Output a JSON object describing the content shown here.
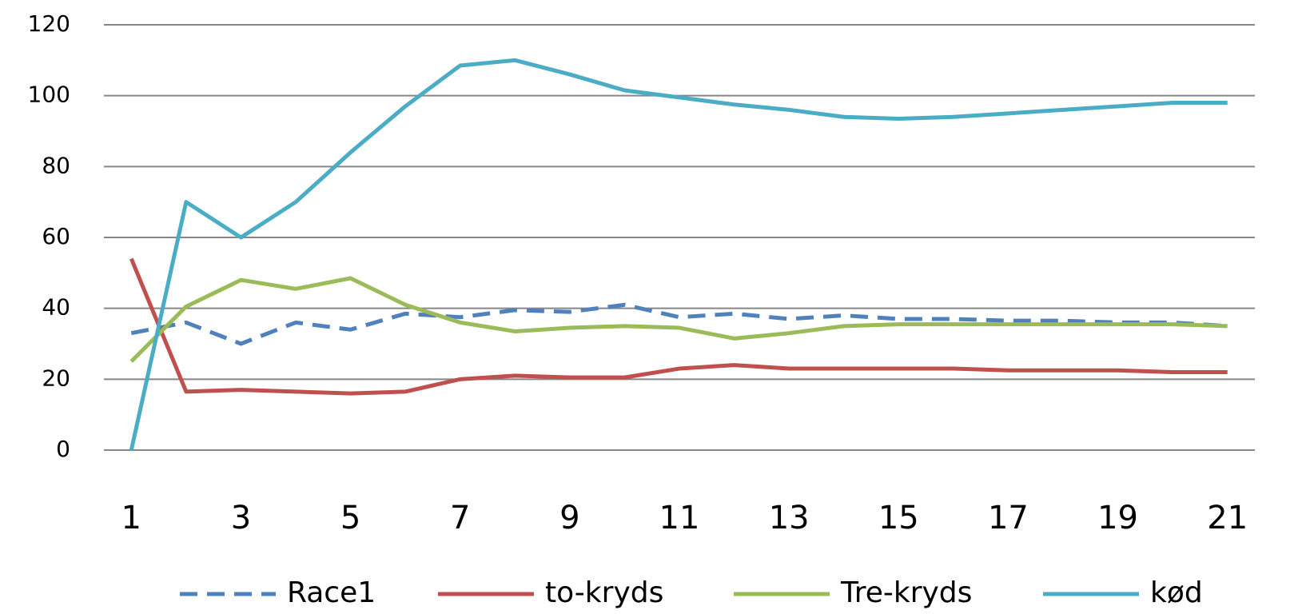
{
  "chart_data": {
    "type": "line",
    "x": [
      1,
      2,
      3,
      4,
      5,
      6,
      7,
      8,
      9,
      10,
      11,
      12,
      13,
      14,
      15,
      16,
      17,
      18,
      19,
      20,
      21
    ],
    "xlim": [
      0.5,
      21.5
    ],
    "xticks": [
      1,
      3,
      5,
      7,
      9,
      11,
      13,
      15,
      17,
      19,
      21
    ],
    "ylim": [
      0,
      120
    ],
    "yticks": [
      0,
      20,
      40,
      60,
      80,
      100,
      120
    ],
    "grid": true,
    "legend": "bottom",
    "series": [
      {
        "name": "Race1",
        "color": "#4f81bd",
        "dashed": true,
        "values": [
          33,
          36,
          30,
          36,
          34,
          38.5,
          37.5,
          39.5,
          39,
          41,
          37.5,
          38.5,
          37,
          38,
          37,
          37,
          36.5,
          36.5,
          36,
          36,
          35
        ]
      },
      {
        "name": "to-kryds",
        "color": "#c0504d",
        "values": [
          54,
          16.5,
          17,
          16.5,
          16,
          16.5,
          20,
          21,
          20.5,
          20.5,
          23,
          24,
          23,
          23,
          23,
          23,
          22.5,
          22.5,
          22.5,
          22,
          22
        ]
      },
      {
        "name": "Tre-kryds",
        "color": "#9bbb59",
        "values": [
          25,
          40.5,
          48,
          45.5,
          48.5,
          41,
          36,
          33.5,
          34.5,
          35,
          34.5,
          31.5,
          33,
          35,
          35.5,
          35.5,
          35.5,
          35.5,
          35.5,
          35.5,
          35
        ]
      },
      {
        "name": "kød",
        "color": "#4bacc6",
        "values": [
          0,
          70,
          60,
          70,
          84,
          97,
          108.5,
          110,
          106,
          101.5,
          99.5,
          97.5,
          96,
          94,
          93.5,
          94,
          95,
          96,
          97,
          98,
          98
        ]
      }
    ]
  }
}
